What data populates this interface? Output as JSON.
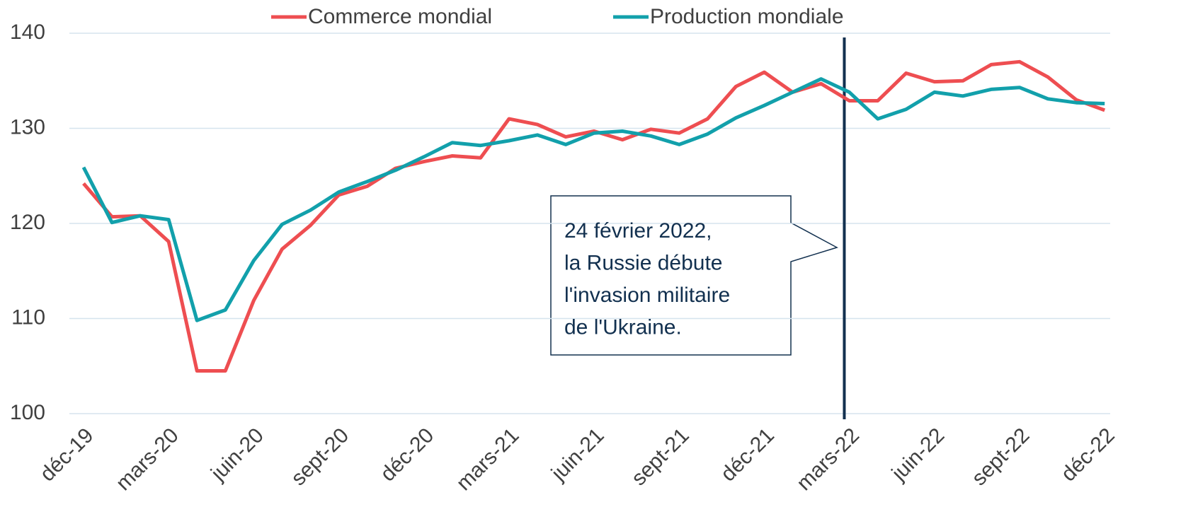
{
  "chart_data": {
    "type": "line",
    "categories": [
      "déc-19",
      null,
      null,
      "mars-20",
      null,
      null,
      "juin-20",
      null,
      null,
      "sept-20",
      null,
      null,
      "déc-20",
      null,
      null,
      "mars-21",
      null,
      null,
      "juin-21",
      null,
      null,
      "sept-21",
      null,
      null,
      "déc-21",
      null,
      null,
      "mars-22",
      null,
      null,
      "juin-22",
      null,
      null,
      "sept-22",
      null,
      null,
      "déc-22"
    ],
    "series": [
      {
        "name": "Commerce mondial",
        "color": "#ee4e51",
        "values": [
          124.2,
          120.7,
          120.8,
          118.1,
          104.5,
          104.5,
          111.9,
          117.3,
          119.8,
          123.0,
          123.9,
          125.8,
          126.5,
          127.1,
          126.9,
          131.0,
          130.4,
          129.1,
          129.7,
          128.8,
          129.9,
          129.5,
          131.0,
          134.4,
          135.9,
          133.8,
          134.7,
          132.9,
          132.9,
          135.8,
          134.9,
          135.0,
          136.7,
          137.0,
          135.4,
          133.0,
          131.9
        ]
      },
      {
        "name": "Production mondiale",
        "color": "#12a0ab",
        "values": [
          125.9,
          120.1,
          120.8,
          120.4,
          109.8,
          110.9,
          116.1,
          119.9,
          121.4,
          123.3,
          124.4,
          125.6,
          127.0,
          128.5,
          128.2,
          128.7,
          129.3,
          128.3,
          129.5,
          129.7,
          129.2,
          128.3,
          129.4,
          131.1,
          132.4,
          133.8,
          135.2,
          133.8,
          131.0,
          132.0,
          133.8,
          133.4,
          134.1,
          134.3,
          133.1,
          132.7,
          132.6
        ]
      }
    ],
    "ylim": [
      100,
      140
    ],
    "yticks": [
      100,
      110,
      120,
      130,
      140
    ],
    "grid": true,
    "legend": "top",
    "annotation": {
      "date": "2022-02-24",
      "color": "#12304f",
      "lines": [
        "24 février 2022,",
        "la Russie débute",
        "l'invasion militaire",
        "de l'Ukraine."
      ]
    }
  }
}
